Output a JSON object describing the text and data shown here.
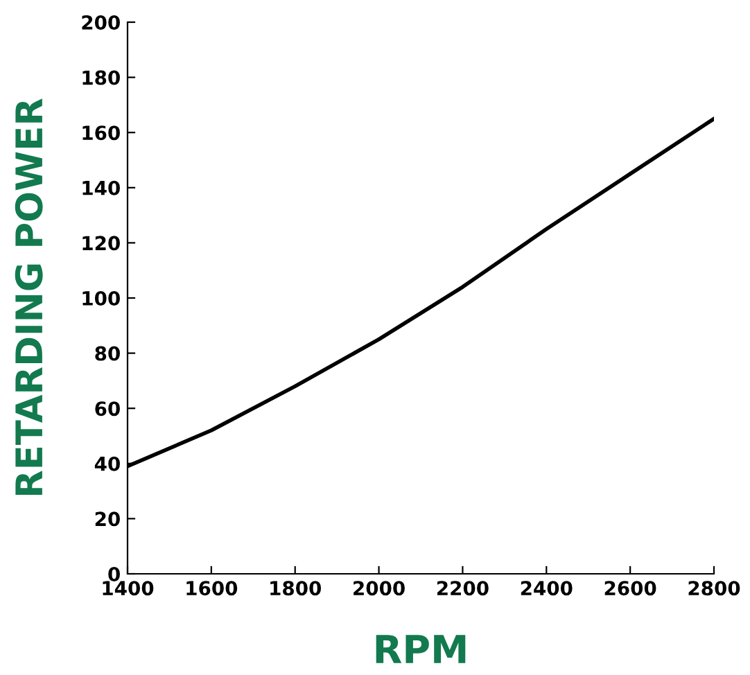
{
  "chart_data": {
    "type": "line",
    "xlabel": "RPM",
    "ylabel": "RETARDING POWER",
    "x": [
      1400,
      1600,
      1800,
      2000,
      2200,
      2400,
      2600,
      2800
    ],
    "series": [
      {
        "color": "#000000",
        "values": [
          39,
          52,
          68,
          85,
          104,
          125,
          145,
          165
        ]
      }
    ],
    "xlim": [
      1400,
      2800
    ],
    "xticks": [
      1400,
      1600,
      1800,
      2000,
      2200,
      2400,
      2600,
      2800
    ],
    "ylim": [
      0,
      200
    ],
    "yticks": [
      0,
      20,
      40,
      60,
      80,
      100,
      120,
      140,
      160,
      180,
      200
    ],
    "grid": false,
    "legend": false,
    "marker": "none",
    "line_style": "solid"
  }
}
